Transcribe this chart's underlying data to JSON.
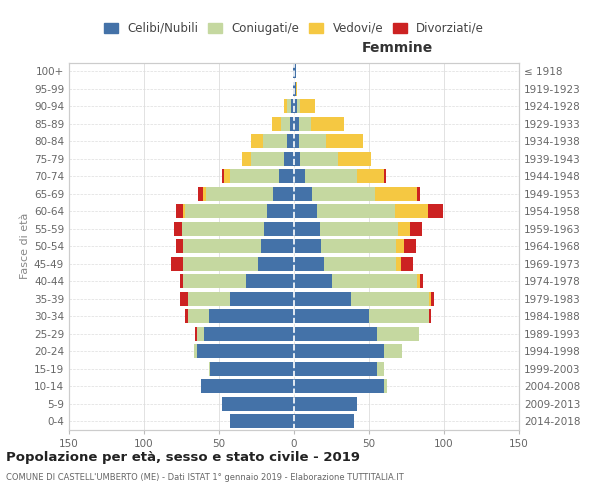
{
  "age_groups": [
    "100+",
    "95-99",
    "90-94",
    "85-89",
    "80-84",
    "75-79",
    "70-74",
    "65-69",
    "60-64",
    "55-59",
    "50-54",
    "45-49",
    "40-44",
    "35-39",
    "30-34",
    "25-29",
    "20-24",
    "15-19",
    "10-14",
    "5-9",
    "0-4"
  ],
  "birth_years": [
    "≤ 1918",
    "1919-1923",
    "1924-1928",
    "1929-1933",
    "1934-1938",
    "1939-1943",
    "1944-1948",
    "1949-1953",
    "1954-1958",
    "1959-1963",
    "1964-1968",
    "1969-1973",
    "1974-1978",
    "1979-1983",
    "1984-1988",
    "1989-1993",
    "1994-1998",
    "1999-2003",
    "2004-2008",
    "2009-2013",
    "2014-2018"
  ],
  "males": {
    "celibi": [
      1,
      1,
      2,
      3,
      5,
      7,
      10,
      14,
      18,
      20,
      22,
      24,
      32,
      43,
      57,
      60,
      65,
      56,
      62,
      48,
      43
    ],
    "coniugati": [
      0,
      0,
      3,
      6,
      16,
      22,
      33,
      45,
      55,
      55,
      52,
      50,
      42,
      28,
      14,
      5,
      2,
      1,
      0,
      0,
      0
    ],
    "vedovi": [
      0,
      0,
      2,
      6,
      8,
      6,
      4,
      2,
      1,
      0,
      0,
      0,
      0,
      0,
      0,
      0,
      0,
      0,
      0,
      0,
      0
    ],
    "divorziati": [
      0,
      0,
      0,
      0,
      0,
      0,
      1,
      3,
      5,
      5,
      5,
      8,
      2,
      5,
      2,
      1,
      0,
      0,
      0,
      0,
      0
    ]
  },
  "females": {
    "nubili": [
      1,
      1,
      2,
      3,
      3,
      4,
      7,
      12,
      15,
      17,
      18,
      20,
      25,
      38,
      50,
      55,
      60,
      55,
      60,
      42,
      40
    ],
    "coniugate": [
      0,
      0,
      2,
      8,
      18,
      25,
      35,
      42,
      52,
      52,
      50,
      48,
      57,
      52,
      40,
      28,
      12,
      5,
      2,
      0,
      0
    ],
    "vedove": [
      0,
      1,
      10,
      22,
      25,
      22,
      18,
      28,
      22,
      8,
      5,
      3,
      2,
      1,
      0,
      0,
      0,
      0,
      0,
      0,
      0
    ],
    "divorziate": [
      0,
      0,
      0,
      0,
      0,
      0,
      1,
      2,
      10,
      8,
      8,
      8,
      2,
      2,
      1,
      0,
      0,
      0,
      0,
      0,
      0
    ]
  },
  "colors": {
    "celibi": "#4472a8",
    "coniugati": "#c5d8a0",
    "vedovi": "#f5c842",
    "divorziati": "#cc2222"
  },
  "title": "Popolazione per età, sesso e stato civile - 2019",
  "subtitle": "COMUNE DI CASTELL'UMBERTO (ME) - Dati ISTAT 1° gennaio 2019 - Elaborazione TUTTITALIA.IT",
  "ylabel_left": "Fasce di età",
  "xlabel_right": "Femmine",
  "xlim": 150,
  "background_color": "#ffffff"
}
